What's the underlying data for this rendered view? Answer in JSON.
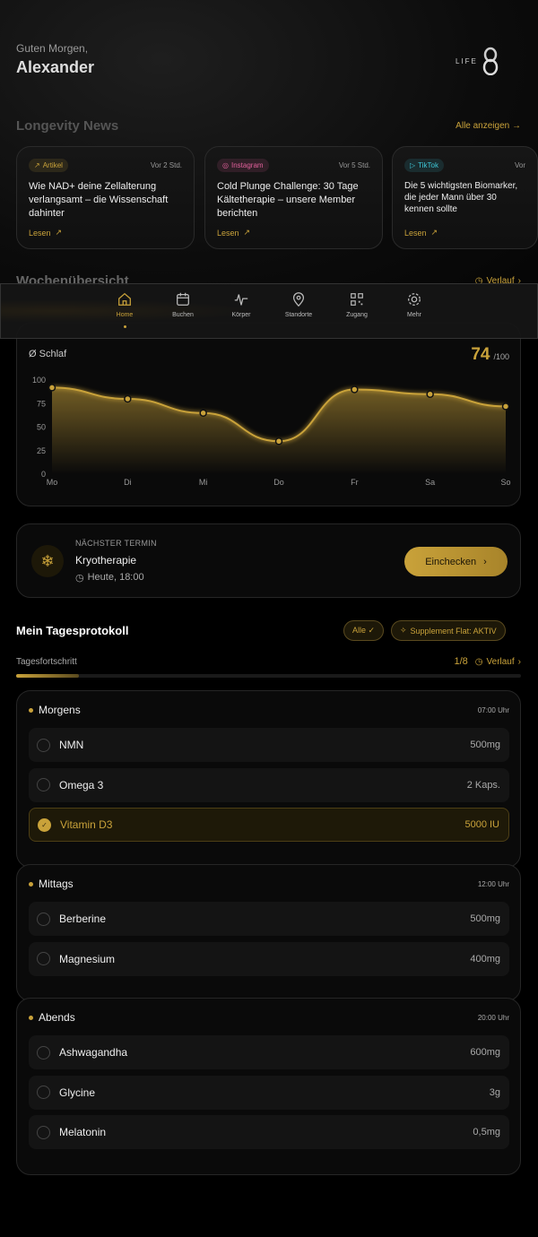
{
  "header": {
    "greeting": "Guten Morgen,",
    "name": "Alexander",
    "logo_text": "LIFE"
  },
  "news": {
    "title": "Longevity News",
    "see_all": "Alle anzeigen →",
    "cards": [
      {
        "type": "Artikel",
        "type_color": "#c9a23a",
        "icon": "external-link-icon",
        "time": "Vor 2 Std.",
        "title": "Wie NAD+ deine Zellalterung verlangsamt – die Wissenschaft dahinter",
        "read": "Lesen"
      },
      {
        "type": "Instagram",
        "type_color": "#e0609a",
        "icon": "instagram-icon",
        "time": "Vor 5 Std.",
        "title": "Cold Plunge Challenge: 30 Tage Kältetherapie – unsere Member berichten",
        "read": "Lesen"
      },
      {
        "type": "TikTok",
        "type_color": "#3ec6d6",
        "icon": "play-icon",
        "time": "Vor",
        "title": "Die 5 wichtigsten Biomarker, die jeder Mann über 30 kennen sollte",
        "read": "Lesen"
      }
    ]
  },
  "week": {
    "title": "Wochenübersicht",
    "history": "Verlauf"
  },
  "nav": {
    "items": [
      {
        "label": "Home",
        "icon": "home-icon",
        "active": true
      },
      {
        "label": "Buchen",
        "icon": "calendar-icon"
      },
      {
        "label": "Körper",
        "icon": "activity-icon"
      },
      {
        "label": "Standorte",
        "icon": "map-pin-icon"
      },
      {
        "label": "Zugang",
        "icon": "qr-code-icon"
      },
      {
        "label": "Mehr",
        "icon": "gear-icon"
      }
    ]
  },
  "sleep": {
    "label": "Ø Schlaf",
    "score": "74",
    "max": "/100"
  },
  "chart_data": {
    "type": "area",
    "categories": [
      "Mo",
      "Di",
      "Mi",
      "Do",
      "Fr",
      "Sa",
      "So"
    ],
    "values": [
      92,
      80,
      65,
      35,
      90,
      85,
      72
    ],
    "ylim": [
      0,
      100
    ],
    "yticks": [
      "0",
      "25",
      "50",
      "75",
      "100"
    ],
    "color": "#c9a23a",
    "grid": false
  },
  "appointment": {
    "eyebrow": "NÄCHSTER TERMIN",
    "title": "Kryotherapie",
    "time": "Heute, 18:00",
    "button": "Einchecken",
    "icon": "snowflake-icon"
  },
  "protocol": {
    "title": "Mein Tagesprotokoll",
    "filter": "Alle ✓",
    "supplement": "Supplement Flat: AKTIV",
    "progress_label": "Tagesfortschritt",
    "progress_text": "1/8",
    "progress": 0.125,
    "history": "Verlauf",
    "groups": [
      {
        "name": "Morgens",
        "time": "07:00 Uhr",
        "items": [
          {
            "name": "NMN",
            "dose": "500mg",
            "done": false
          },
          {
            "name": "Omega 3",
            "dose": "2 Kaps.",
            "done": false
          },
          {
            "name": "Vitamin D3",
            "dose": "5000 IU",
            "done": true
          }
        ]
      },
      {
        "name": "Mittags",
        "time": "12:00 Uhr",
        "items": [
          {
            "name": "Berberine",
            "dose": "500mg",
            "done": false
          },
          {
            "name": "Magnesium",
            "dose": "400mg",
            "done": false
          }
        ]
      },
      {
        "name": "Abends",
        "time": "20:00 Uhr",
        "items": [
          {
            "name": "Ashwagandha",
            "dose": "600mg",
            "done": false
          },
          {
            "name": "Glycine",
            "dose": "3g",
            "done": false
          },
          {
            "name": "Melatonin",
            "dose": "0,5mg",
            "done": false
          }
        ]
      }
    ]
  }
}
